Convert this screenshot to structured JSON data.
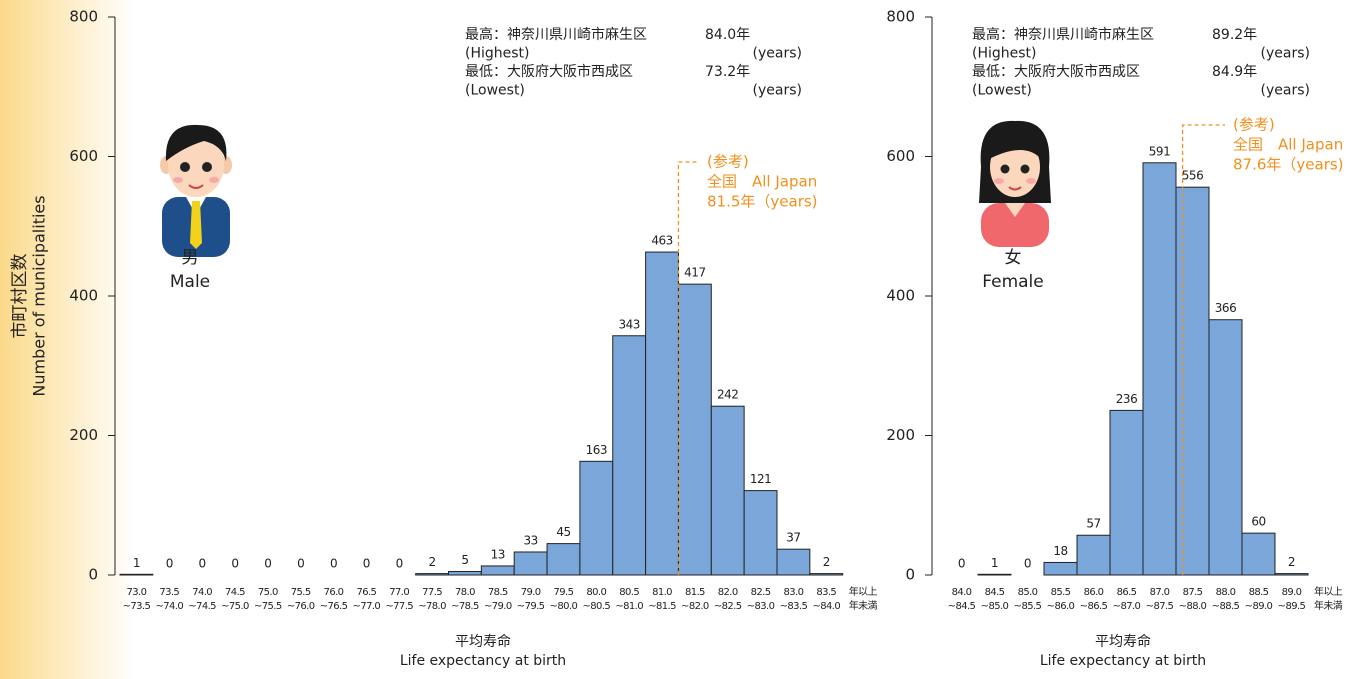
{
  "chart_data": [
    {
      "type": "histogram",
      "y_label": "市町村区数",
      "y_label_en": "Number of municipalities",
      "x_label": "平均寿命",
      "x_label_en": "Life expectancy at birth",
      "person": [
        "男",
        "Male"
      ],
      "bins": [
        73.0,
        73.5,
        74.0,
        74.5,
        75.0,
        75.5,
        76.0,
        76.5,
        77.0,
        77.5,
        78.0,
        78.5,
        79.0,
        79.5,
        80.0,
        80.5,
        81.0,
        81.5,
        82.0,
        82.5,
        83.0,
        83.5,
        84.0
      ],
      "categories": [
        [
          "73.0",
          "~73.5"
        ],
        [
          "73.5",
          "~74.0"
        ],
        [
          "74.0",
          "~74.5"
        ],
        [
          "74.5",
          "~75.0"
        ],
        [
          "75.0",
          "~75.5"
        ],
        [
          "75.5",
          "~76.0"
        ],
        [
          "76.0",
          "~76.5"
        ],
        [
          "76.5",
          "~77.0"
        ],
        [
          "77.0",
          "~77.5"
        ],
        [
          "77.5",
          "~78.0"
        ],
        [
          "78.0",
          "~78.5"
        ],
        [
          "78.5",
          "~79.0"
        ],
        [
          "79.0",
          "~79.5"
        ],
        [
          "79.5",
          "~80.0"
        ],
        [
          "80.0",
          "~80.5"
        ],
        [
          "80.5",
          "~81.0"
        ],
        [
          "81.0",
          "~81.5"
        ],
        [
          "81.5",
          "~82.0"
        ],
        [
          "82.0",
          "~82.5"
        ],
        [
          "82.5",
          "~83.0"
        ],
        [
          "83.0",
          "~83.5"
        ],
        [
          "83.5",
          "~84.0"
        ]
      ],
      "category_suffix": [
        "年以上",
        "年未満"
      ],
      "values": [
        1,
        0,
        0,
        0,
        0,
        0,
        0,
        0,
        0,
        2,
        5,
        13,
        33,
        45,
        163,
        343,
        463,
        417,
        242,
        121,
        37,
        2
      ],
      "color": "#7ba6da",
      "ylim": [
        0,
        800
      ],
      "yticks": [
        0,
        200,
        400,
        600,
        800
      ],
      "stats": [
        [
          "最高：神奈川県川崎市麻生区",
          "84.0年"
        ],
        [
          "(Highest)",
          "(years)"
        ],
        [
          "最低：大阪府大阪市西成区",
          "73.2年"
        ],
        [
          "(Lowest)",
          "(years)"
        ]
      ],
      "reference": {
        "value": 81.5,
        "lines": [
          "(参考)",
          "全国　All Japan",
          "81.5年（years)"
        ],
        "color": "#f0901e"
      }
    },
    {
      "type": "histogram",
      "x_label": "平均寿命",
      "x_label_en": "Life expectancy at birth",
      "person": [
        "女",
        "Female"
      ],
      "bins": [
        84.0,
        84.5,
        85.0,
        85.5,
        86.0,
        86.5,
        87.0,
        87.5,
        88.0,
        88.5,
        89.0,
        89.5
      ],
      "categories": [
        [
          "84.0",
          "~84.5"
        ],
        [
          "84.5",
          "~85.0"
        ],
        [
          "85.0",
          "~85.5"
        ],
        [
          "85.5",
          "~86.0"
        ],
        [
          "86.0",
          "~86.5"
        ],
        [
          "86.5",
          "~87.0"
        ],
        [
          "87.0",
          "~87.5"
        ],
        [
          "87.5",
          "~88.0"
        ],
        [
          "88.0",
          "~88.5"
        ],
        [
          "88.5",
          "~89.0"
        ],
        [
          "89.0",
          "~89.5"
        ]
      ],
      "category_suffix": [
        "年以上",
        "年未満"
      ],
      "values": [
        0,
        1,
        0,
        18,
        57,
        236,
        591,
        556,
        366,
        60,
        2
      ],
      "color": "#7ba6da",
      "ylim": [
        0,
        800
      ],
      "yticks": [
        0,
        200,
        400,
        600,
        800
      ],
      "stats": [
        [
          "最高：神奈川県川崎市麻生区",
          "89.2年"
        ],
        [
          "(Highest)",
          "(years)"
        ],
        [
          "最低：大阪府大阪市西成区",
          "84.9年"
        ],
        [
          "(Lowest)",
          "(years)"
        ]
      ],
      "reference": {
        "value": 87.6,
        "lines": [
          "(参考)",
          "全国　All Japan",
          "87.6年（years)"
        ],
        "color": "#f0901e"
      }
    }
  ]
}
